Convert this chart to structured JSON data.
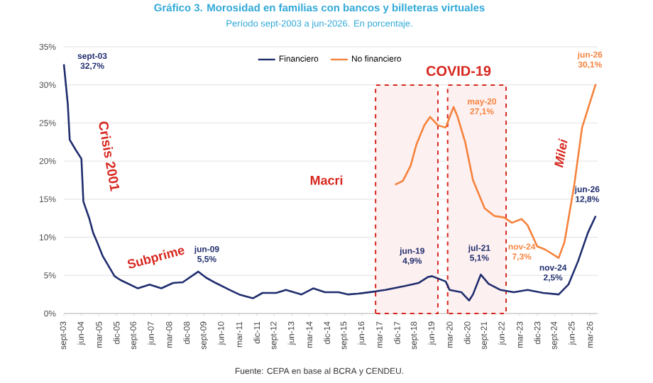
{
  "chart_data": {
    "type": "line",
    "title": "Gráfico 3. Morosidad en familias con bancos y billeteras virtuales",
    "subtitle": "Período sept-2003 a jun-2026. En porcentaje.",
    "series": [
      {
        "name": "Financiero",
        "color": "#1f2d6e",
        "x": [
          "2003-09",
          "2003-11",
          "2003-12",
          "2004-03",
          "2004-06",
          "2004-07",
          "2004-10",
          "2004-12",
          "2005-02",
          "2005-05",
          "2005-08",
          "2005-11",
          "2006-02",
          "2006-11",
          "2007-05",
          "2007-11",
          "2008-05",
          "2008-10",
          "2009-06",
          "2009-10",
          "2010-03",
          "2010-10",
          "2011-03",
          "2011-10",
          "2012-03",
          "2012-10",
          "2013-03",
          "2013-11",
          "2014-05",
          "2014-11",
          "2015-06",
          "2015-11",
          "2016-04",
          "2017-01",
          "2017-06",
          "2018-04",
          "2018-11",
          "2019-04",
          "2019-06",
          "2020-01",
          "2020-03",
          "2020-09",
          "2021-01",
          "2021-03",
          "2021-07",
          "2021-11",
          "2022-05",
          "2022-12",
          "2023-07",
          "2024-03",
          "2024-11",
          "2025-04",
          "2025-09",
          "2026-02",
          "2026-06"
        ],
        "values": [
          32.7,
          27.5,
          22.8,
          21.5,
          20.3,
          14.7,
          12.5,
          10.6,
          9.4,
          7.5,
          6.2,
          4.9,
          4.4,
          3.3,
          3.8,
          3.3,
          4.0,
          4.1,
          5.5,
          4.7,
          4.0,
          3.1,
          2.5,
          2.0,
          2.7,
          2.7,
          3.1,
          2.5,
          3.3,
          2.8,
          2.8,
          2.5,
          2.6,
          2.9,
          3.1,
          3.6,
          4.0,
          4.8,
          4.9,
          4.2,
          3.1,
          2.8,
          1.7,
          2.5,
          5.1,
          3.9,
          3.1,
          2.8,
          3.1,
          2.7,
          2.5,
          3.8,
          6.9,
          10.6,
          12.8
        ]
      },
      {
        "name": "No financiero",
        "color": "#f5823c",
        "x": [
          "2017-11",
          "2018-03",
          "2018-07",
          "2018-10",
          "2019-02",
          "2019-05",
          "2019-09",
          "2020-01",
          "2020-05",
          "2020-07",
          "2020-11",
          "2021-03",
          "2021-09",
          "2022-02",
          "2022-07",
          "2022-11",
          "2023-04",
          "2023-07",
          "2023-12",
          "2024-04",
          "2024-11",
          "2025-02",
          "2025-07",
          "2025-11",
          "2026-06"
        ],
        "values": [
          16.9,
          17.4,
          19.4,
          22.2,
          24.7,
          25.8,
          24.7,
          24.4,
          27.1,
          25.9,
          22.5,
          17.5,
          13.8,
          12.8,
          12.6,
          11.9,
          12.4,
          11.6,
          8.8,
          8.4,
          7.3,
          9.4,
          16.9,
          24.4,
          30.1
        ]
      }
    ],
    "xlim": [
      "2003-09",
      "2026-07"
    ],
    "xticks": [
      {
        "value": "2003-09",
        "label": "sept-03"
      },
      {
        "value": "2004-06",
        "label": "jun-04"
      },
      {
        "value": "2005-03",
        "label": "mar-05"
      },
      {
        "value": "2005-12",
        "label": "dic-05"
      },
      {
        "value": "2006-09",
        "label": "sept-06"
      },
      {
        "value": "2007-06",
        "label": "jun-07"
      },
      {
        "value": "2008-03",
        "label": "mar-08"
      },
      {
        "value": "2008-12",
        "label": "dic-08"
      },
      {
        "value": "2009-09",
        "label": "sept-09"
      },
      {
        "value": "2010-06",
        "label": "jun-10"
      },
      {
        "value": "2011-03",
        "label": "mar-11"
      },
      {
        "value": "2011-12",
        "label": "dic-11"
      },
      {
        "value": "2012-09",
        "label": "sept-12"
      },
      {
        "value": "2013-06",
        "label": "jun-13"
      },
      {
        "value": "2014-03",
        "label": "mar-14"
      },
      {
        "value": "2014-12",
        "label": "dic-14"
      },
      {
        "value": "2015-09",
        "label": "sept-15"
      },
      {
        "value": "2016-06",
        "label": "jun-16"
      },
      {
        "value": "2017-03",
        "label": "mar-17"
      },
      {
        "value": "2017-12",
        "label": "dic-17"
      },
      {
        "value": "2018-09",
        "label": "sept-18"
      },
      {
        "value": "2019-06",
        "label": "jun-19"
      },
      {
        "value": "2020-03",
        "label": "mar-20"
      },
      {
        "value": "2020-12",
        "label": "dic-20"
      },
      {
        "value": "2021-09",
        "label": "sept-21"
      },
      {
        "value": "2022-06",
        "label": "jun-22"
      },
      {
        "value": "2023-03",
        "label": "mar-23"
      },
      {
        "value": "2023-12",
        "label": "dic-23"
      },
      {
        "value": "2024-09",
        "label": "sept-24"
      },
      {
        "value": "2025-06",
        "label": "jun-25"
      },
      {
        "value": "2026-03",
        "label": "mar-26"
      }
    ],
    "ylim": [
      0,
      35
    ],
    "yticks": [
      {
        "value": 0,
        "label": "0%"
      },
      {
        "value": 5,
        "label": "5%"
      },
      {
        "value": 10,
        "label": "10%"
      },
      {
        "value": 15,
        "label": "15%"
      },
      {
        "value": 20,
        "label": "20%"
      },
      {
        "value": 25,
        "label": "25%"
      },
      {
        "value": 30,
        "label": "30%"
      },
      {
        "value": 35,
        "label": "35%"
      }
    ],
    "grid": "y",
    "legend": "top",
    "marker": "none",
    "line_style": "solid",
    "bands": [
      {
        "axis": "x",
        "from": "2017-01",
        "to": "2019-09",
        "color": "#d7261e"
      },
      {
        "axis": "x",
        "from": "2020-02",
        "to": "2022-08",
        "color": "#d7261e"
      }
    ],
    "annotations": [
      {
        "text": "sept-03 32,7%",
        "x": "2003-09",
        "y": 32.7
      },
      {
        "text": "jun-09 5,5%",
        "x": "2009-06",
        "y": 5.5
      },
      {
        "text": "jun-19 4,9%",
        "x": "2019-06",
        "y": 4.9
      },
      {
        "text": "jul-21 5,1%",
        "x": "2021-07",
        "y": 5.1
      },
      {
        "text": "nov-24 2,5%",
        "x": "2024-11",
        "y": 2.5
      },
      {
        "text": "jun-26 12,8%",
        "x": "2026-06",
        "y": 12.8
      },
      {
        "text": "may-20 27,1%",
        "x": "2020-05",
        "y": 27.1
      },
      {
        "text": "nov-24 7,3%",
        "x": "2024-11",
        "y": 7.3
      },
      {
        "text": "jun-26 30,1%",
        "x": "2026-06",
        "y": 30.1
      },
      "Crisis 2001",
      "Subprime",
      "Macri",
      "COVID-19",
      "Milei",
      "Fuente: CEPA en base al BCRA y CENDEU."
    ]
  }
}
